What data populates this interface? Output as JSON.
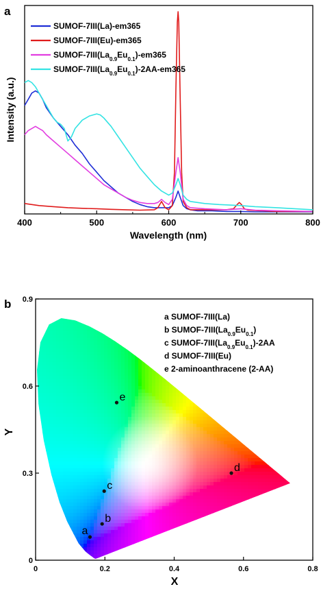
{
  "chart_data": [
    {
      "panel": "a",
      "type": "line",
      "xlabel": "Wavelength (nm)",
      "ylabel": "Intensity (a.u.)",
      "xlim": [
        400,
        800
      ],
      "ylim": [
        0,
        1
      ],
      "xticks": [
        "400",
        "500",
        "600",
        "700",
        "800"
      ],
      "grid": false,
      "legend_position": "top-left",
      "series": [
        {
          "name": "SUMOF-7III(La)-em365",
          "legend_parts": [
            [
              "SUMOF-7III(La)-em365",
              "n"
            ]
          ],
          "color": "#1f2ed6",
          "x": [
            400,
            405,
            410,
            415,
            420,
            425,
            430,
            440,
            450,
            460,
            470,
            480,
            490,
            500,
            510,
            520,
            530,
            540,
            550,
            560,
            570,
            580,
            590,
            600,
            605,
            610,
            613,
            616,
            620,
            625,
            630,
            640,
            660,
            680,
            700,
            720,
            750,
            800
          ],
          "y": [
            0.52,
            0.55,
            0.58,
            0.59,
            0.58,
            0.55,
            0.51,
            0.46,
            0.42,
            0.38,
            0.33,
            0.29,
            0.24,
            0.2,
            0.16,
            0.13,
            0.1,
            0.08,
            0.06,
            0.045,
            0.035,
            0.03,
            0.03,
            0.03,
            0.04,
            0.08,
            0.11,
            0.08,
            0.04,
            0.025,
            0.02,
            0.015,
            0.015,
            0.012,
            0.012,
            0.01,
            0.01,
            0.01
          ]
        },
        {
          "name": "SUMOF-7III(Eu)-em365",
          "legend_parts": [
            [
              "SUMOF-7III(Eu)-em365",
              "n"
            ]
          ],
          "color": "#e01b1b",
          "x": [
            400,
            420,
            440,
            460,
            480,
            500,
            520,
            540,
            560,
            580,
            585,
            590,
            595,
            600,
            605,
            608,
            610,
            612,
            613,
            614,
            616,
            618,
            620,
            625,
            630,
            650,
            680,
            690,
            695,
            698,
            701,
            705,
            710,
            750,
            800
          ],
          "y": [
            0.05,
            0.04,
            0.035,
            0.03,
            0.027,
            0.025,
            0.022,
            0.02,
            0.018,
            0.02,
            0.03,
            0.06,
            0.03,
            0.02,
            0.04,
            0.2,
            0.6,
            0.92,
            0.97,
            0.92,
            0.55,
            0.2,
            0.06,
            0.03,
            0.02,
            0.02,
            0.02,
            0.025,
            0.045,
            0.055,
            0.045,
            0.025,
            0.018,
            0.012,
            0.012
          ]
        },
        {
          "name": "SUMOF-7III(La0.9Eu0.1)-em365",
          "legend_parts": [
            [
              "SUMOF-7III(La",
              "n"
            ],
            [
              "0.9",
              "sub"
            ],
            [
              "Eu",
              "n"
            ],
            [
              "0.1",
              "sub"
            ],
            [
              ")-em365",
              "n"
            ]
          ],
          "color": "#e23de0",
          "x": [
            400,
            405,
            410,
            415,
            420,
            425,
            430,
            440,
            450,
            460,
            470,
            480,
            490,
            500,
            510,
            520,
            530,
            540,
            550,
            560,
            570,
            580,
            585,
            590,
            595,
            600,
            605,
            610,
            613,
            616,
            620,
            625,
            630,
            650,
            680,
            700,
            720,
            750,
            800
          ],
          "y": [
            0.38,
            0.4,
            0.41,
            0.42,
            0.41,
            0.4,
            0.38,
            0.35,
            0.32,
            0.29,
            0.26,
            0.23,
            0.2,
            0.17,
            0.14,
            0.12,
            0.1,
            0.08,
            0.065,
            0.055,
            0.05,
            0.05,
            0.055,
            0.07,
            0.055,
            0.045,
            0.07,
            0.2,
            0.27,
            0.2,
            0.07,
            0.04,
            0.03,
            0.025,
            0.02,
            0.025,
            0.018,
            0.015,
            0.012
          ]
        },
        {
          "name": "SUMOF-7III(La0.9Eu0.1)-2AA-em365",
          "legend_parts": [
            [
              "SUMOF-7III(La",
              "n"
            ],
            [
              "0.9",
              "sub"
            ],
            [
              "Eu",
              "n"
            ],
            [
              "0.1",
              "sub"
            ],
            [
              ")-2AA-em365",
              "n"
            ]
          ],
          "color": "#33e3e3",
          "x": [
            400,
            405,
            410,
            415,
            420,
            425,
            430,
            435,
            440,
            445,
            450,
            455,
            460,
            465,
            470,
            480,
            490,
            500,
            505,
            510,
            520,
            530,
            540,
            550,
            560,
            570,
            580,
            590,
            600,
            605,
            610,
            613,
            616,
            620,
            625,
            630,
            650,
            670,
            700,
            720,
            750,
            800
          ],
          "y": [
            0.63,
            0.64,
            0.63,
            0.61,
            0.58,
            0.55,
            0.52,
            0.49,
            0.46,
            0.44,
            0.43,
            0.41,
            0.35,
            0.37,
            0.41,
            0.45,
            0.47,
            0.48,
            0.475,
            0.46,
            0.42,
            0.37,
            0.32,
            0.27,
            0.22,
            0.18,
            0.14,
            0.11,
            0.09,
            0.1,
            0.14,
            0.17,
            0.14,
            0.09,
            0.07,
            0.06,
            0.05,
            0.045,
            0.04,
            0.035,
            0.03,
            0.02
          ]
        }
      ]
    },
    {
      "panel": "b",
      "type": "scatter",
      "xlabel": "X",
      "ylabel": "Y",
      "xlim": [
        0,
        0.8
      ],
      "ylim": [
        0,
        0.9
      ],
      "xticks": [
        "0",
        "0.2",
        "0.4",
        "0.6",
        "0.8"
      ],
      "yticks": [
        "0",
        "0.3",
        "0.6",
        "0.9"
      ],
      "grid": false,
      "legend_position": "top-right",
      "legend": [
        {
          "key": "a",
          "parts": [
            [
              "a SUMOF-7III(La)",
              "n"
            ]
          ]
        },
        {
          "key": "b",
          "parts": [
            [
              "b SUMOF-7III(La",
              "n"
            ],
            [
              "0.9",
              "sub"
            ],
            [
              "Eu",
              "n"
            ],
            [
              "0.1",
              "sub"
            ],
            [
              ")",
              "n"
            ]
          ]
        },
        {
          "key": "c",
          "parts": [
            [
              "c SUMOF-7III(La",
              "n"
            ],
            [
              "0.9",
              "sub"
            ],
            [
              "Eu",
              "n"
            ],
            [
              "0.1",
              "sub"
            ],
            [
              ")-2AA",
              "n"
            ]
          ]
        },
        {
          "key": "d",
          "parts": [
            [
              "d SUMOF-7III(Eu)",
              "n"
            ]
          ]
        },
        {
          "key": "e",
          "parts": [
            [
              "e 2-aminoanthracene (2-AA)",
              "n"
            ]
          ]
        }
      ],
      "points": [
        {
          "label": "a",
          "x": 0.157,
          "y": 0.08
        },
        {
          "label": "b",
          "x": 0.192,
          "y": 0.125
        },
        {
          "label": "c",
          "x": 0.198,
          "y": 0.238
        },
        {
          "label": "d",
          "x": 0.565,
          "y": 0.3
        },
        {
          "label": "e",
          "x": 0.234,
          "y": 0.543
        }
      ]
    }
  ],
  "panel_a_letter": "a",
  "panel_b_letter": "b"
}
